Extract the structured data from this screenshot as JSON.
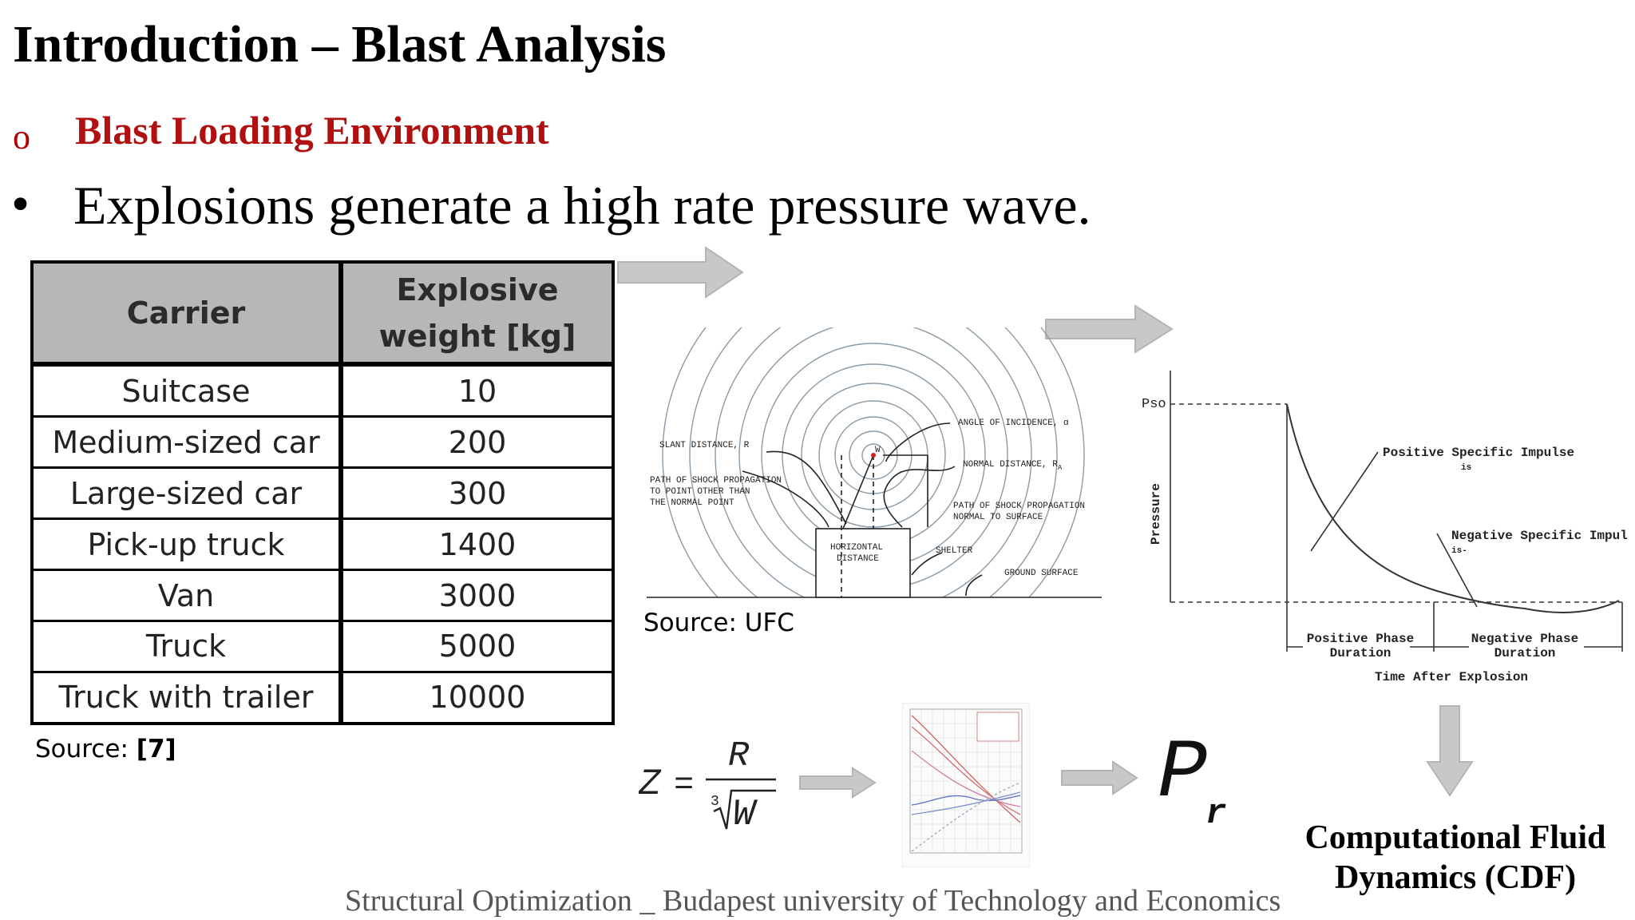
{
  "slide": {
    "title": "Introduction – Blast Analysis",
    "sub_bullet": "o",
    "subtitle": "Blast Loading Environment",
    "main_bullet": "•",
    "main_text": "Explosions generate a high rate pressure wave.",
    "footer": "Structural Optimization _ Budapest university of Technology and Economics"
  },
  "table": {
    "headers": [
      "Carrier",
      "Explosive",
      "weight [kg]"
    ],
    "rows": [
      {
        "carrier": "Suitcase",
        "weight": "10"
      },
      {
        "carrier": "Medium-sized car",
        "weight": "200"
      },
      {
        "carrier": "Large-sized car",
        "weight": "300"
      },
      {
        "carrier": "Pick-up truck",
        "weight": "1400"
      },
      {
        "carrier": "Van",
        "weight": "3000"
      },
      {
        "carrier": "Truck",
        "weight": "5000"
      },
      {
        "carrier": "Truck with trailer",
        "weight": "10000"
      }
    ],
    "source_prefix": "Source: ",
    "source_ref": "[7]"
  },
  "diagram": {
    "labels": {
      "slant_distance": "SLANT DISTANCE, R",
      "path_other_1": "PATH OF SHOCK PROPAGATION",
      "path_other_2": "TO POINT OTHER THAN",
      "path_other_3": "THE NORMAL POINT",
      "angle": "ANGLE OF INCIDENCE, α",
      "normal_distance": "NORMAL DISTANCE, R",
      "normal_sub": "A",
      "path_normal_1": "PATH OF SHOCK PROPAGATION",
      "path_normal_2": "NORMAL TO SURFACE",
      "horizontal_1": "HORIZONTAL",
      "horizontal_2": "DISTANCE",
      "shelter": "SHELTER",
      "ground": "GROUND SURFACE",
      "w": "W"
    },
    "source": "Source: UFC"
  },
  "pressure_graph": {
    "pso_label": "Pso",
    "y_label": "Pressure",
    "positive_impulse": "Positive Specific Impulse",
    "positive_sub": "is",
    "negative_impulse": "Negative Specific Impulse",
    "negative_sub": "is-",
    "positive_phase_1": "Positive Phase",
    "positive_phase_2": "Duration",
    "negative_phase_1": "Negative Phase",
    "negative_phase_2": "Duration",
    "x_label": "Time After Explosion"
  },
  "formula": {
    "z": "Z",
    "equals": "=",
    "numerator": "R",
    "root_index": "3",
    "radicand": "W",
    "result_base": "P",
    "result_sub": "r"
  },
  "cfd": {
    "line1": "Computational Fluid",
    "line2": "Dynamics (CDF)"
  },
  "colors": {
    "subtitle": "#b01010",
    "table_header_bg": "#b7b7b7",
    "arrow": "#c8c8c8",
    "footer": "#555555"
  }
}
